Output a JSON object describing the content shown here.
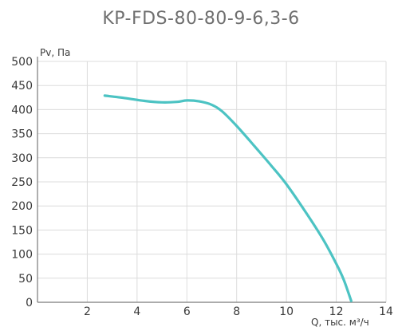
{
  "chart_data": {
    "type": "line",
    "title": "KP-FDS-80-80-9-6,3-6",
    "xlabel": "Q, тыс. м³/ч",
    "ylabel": "Pv, Па",
    "xlim": [
      0,
      14
    ],
    "ylim": [
      0,
      500
    ],
    "x_ticks": [
      "2",
      "4",
      "6",
      "8",
      "10",
      "12",
      "14"
    ],
    "y_ticks": [
      "0",
      "50",
      "100",
      "150",
      "200",
      "250",
      "300",
      "350",
      "400",
      "450",
      "500"
    ],
    "grid": true,
    "series": [
      {
        "color": "#4cc3c3",
        "x": [
          2.7,
          3.5,
          4.3,
          5.0,
          5.6,
          6.0,
          6.5,
          7.0,
          7.4,
          8.0,
          8.7,
          9.4,
          10.0,
          10.8,
          11.5,
          12.0,
          12.3,
          12.6
        ],
        "y": [
          429,
          424,
          418,
          415,
          416,
          419,
          417,
          410,
          397,
          366,
          325,
          283,
          245,
          185,
          128,
          80,
          47,
          3
        ]
      }
    ]
  }
}
